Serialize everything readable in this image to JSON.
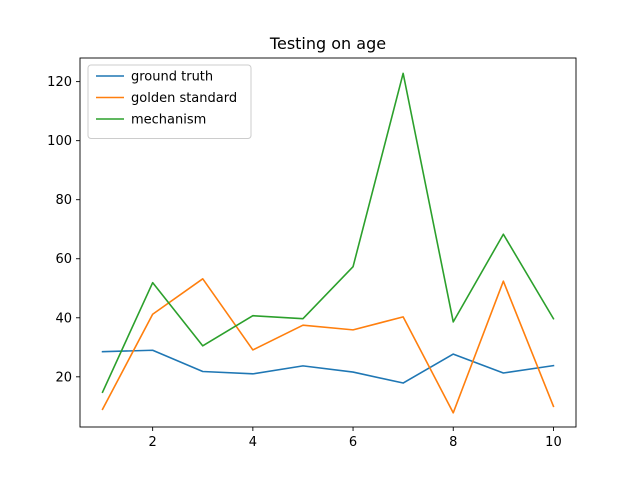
{
  "chart_data": {
    "type": "line",
    "title": "Testing on age",
    "xlabel": "",
    "ylabel": "",
    "x": [
      1,
      2,
      3,
      4,
      5,
      6,
      7,
      8,
      9,
      10
    ],
    "xlim": [
      0.55,
      10.45
    ],
    "ylim": [
      3,
      128
    ],
    "xticks": [
      2,
      4,
      6,
      8,
      10
    ],
    "yticks": [
      20,
      40,
      60,
      80,
      100,
      120
    ],
    "grid": false,
    "legend_position": "top-left",
    "series": [
      {
        "name": "ground truth",
        "color": "#1f77b4",
        "values": [
          28.5,
          29.0,
          21.8,
          21.0,
          23.7,
          21.6,
          17.9,
          27.7,
          21.3,
          23.8
        ]
      },
      {
        "name": "golden standard",
        "color": "#ff7f0e",
        "values": [
          9.0,
          41.2,
          53.2,
          29.1,
          37.5,
          35.9,
          40.3,
          7.8,
          52.4,
          10.0
        ]
      },
      {
        "name": "mechanism",
        "color": "#2ca02c",
        "values": [
          14.8,
          51.9,
          30.5,
          40.7,
          39.7,
          57.3,
          122.8,
          38.6,
          68.3,
          39.7
        ]
      }
    ]
  }
}
